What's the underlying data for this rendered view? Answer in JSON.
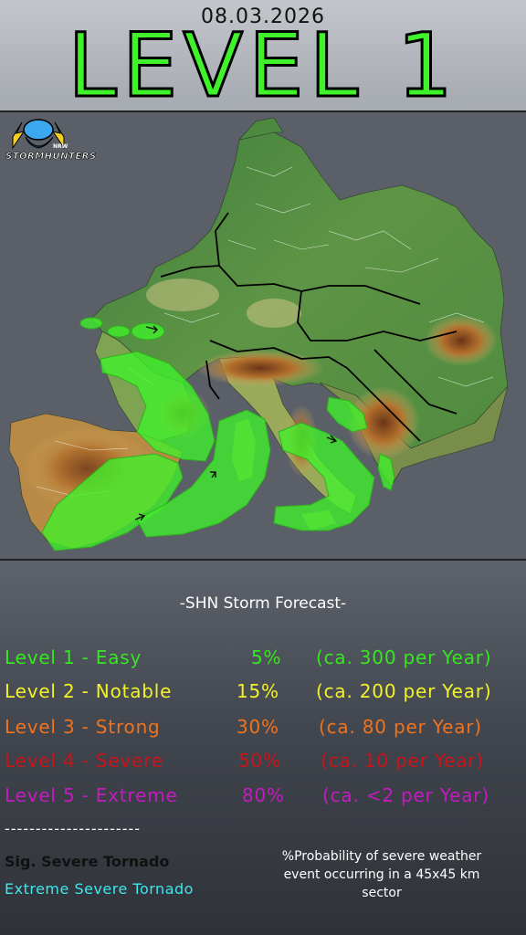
{
  "header": {
    "date": "08.03.2026",
    "level_title": "LEVEL 1"
  },
  "logo": {
    "text": "STORMHUNTERS",
    "sub": "NRW",
    "icon": "storm-cloud-lightning-logo"
  },
  "forecast": {
    "title": "-SHN Storm Forecast-",
    "levels": [
      {
        "label": "Level 1 - Easy",
        "percent": "5%",
        "frequency": "(ca. 300 per Year)",
        "color": "#35e81e"
      },
      {
        "label": "Level 2 - Notable",
        "percent": "15%",
        "frequency": "(ca. 200 per Year)",
        "color": "#f2f22a"
      },
      {
        "label": "Level 3 - Strong",
        "percent": "30%",
        "frequency": "(ca. 80 per Year)",
        "color": "#f0731e"
      },
      {
        "label": "Level 4 - Severe",
        "percent": "50%",
        "frequency": "(ca. 10 per Year)",
        "color": "#c8141b"
      },
      {
        "label": "Level 5 - Extreme",
        "percent": "80%",
        "frequency": "(ca.  <2 per Year)",
        "color": "#c41bc0"
      }
    ],
    "divider": "----------------------",
    "sig_tornado": "Sig. Severe Tornado",
    "extreme_tornado": "Extreme Severe Tornado",
    "probability_note": "%Probability of severe weather event occurring in a 45x45 km sector"
  },
  "map": {
    "sea_color": "#5b6068",
    "risk_color": "#3ff22a",
    "risk_areas": "Level 1 risk areas over Bay of Biscay, Iberia, western Mediterranean, Italy and Adriatic"
  }
}
